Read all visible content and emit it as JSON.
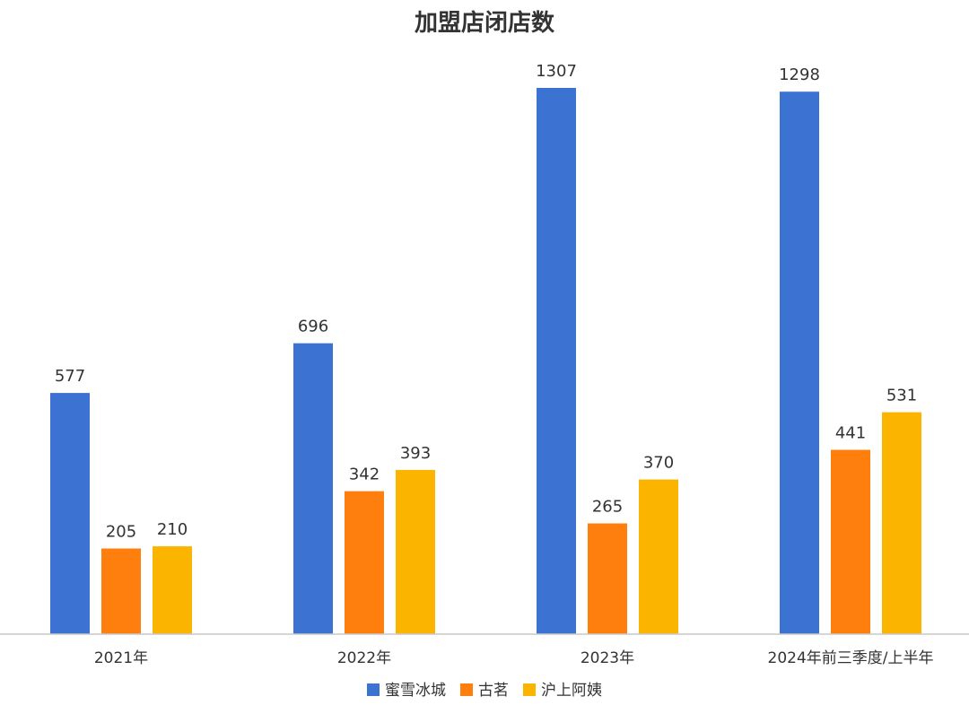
{
  "chart_data": {
    "type": "bar",
    "title": "加盟店闭店数",
    "xlabel": "",
    "ylabel": "",
    "categories": [
      "2021年",
      "2022年",
      "2023年",
      "2024年前三季度/上半年"
    ],
    "series": [
      {
        "name": "蜜雪冰城",
        "color": "#3c73d2",
        "values": [
          577,
          696,
          1307,
          1298
        ]
      },
      {
        "name": "古茗",
        "color": "#ff7f0e",
        "values": [
          205,
          342,
          265,
          441
        ]
      },
      {
        "name": "沪上阿姨",
        "color": "#fbb500",
        "values": [
          210,
          393,
          370,
          531
        ]
      }
    ],
    "ylim": [
      0,
      1307
    ],
    "grid": false,
    "legend_position": "bottom"
  }
}
